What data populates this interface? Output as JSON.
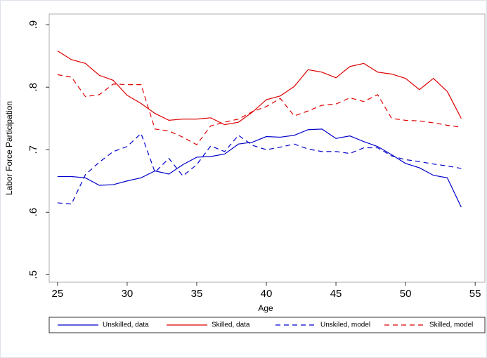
{
  "chart_data": {
    "type": "line",
    "x_label": "Age",
    "y_label": "Labor Force Participation",
    "x": [
      25,
      26,
      27,
      28,
      29,
      30,
      31,
      32,
      33,
      34,
      35,
      36,
      37,
      38,
      39,
      40,
      41,
      42,
      43,
      44,
      45,
      46,
      47,
      48,
      49,
      50,
      51,
      52,
      53,
      54
    ],
    "series": [
      {
        "name": "Unskilled, data",
        "color": "#0000cc",
        "style": "solid",
        "values": [
          0.657,
          0.657,
          0.655,
          0.643,
          0.644,
          0.65,
          0.655,
          0.666,
          0.661,
          0.676,
          0.688,
          0.689,
          0.693,
          0.709,
          0.712,
          0.721,
          0.72,
          0.723,
          0.732,
          0.733,
          0.718,
          0.722,
          0.713,
          0.705,
          0.692,
          0.678,
          0.671,
          0.659,
          0.655,
          0.608
        ]
      },
      {
        "name": "Skilled, data",
        "color": "#dd0000",
        "style": "solid",
        "values": [
          0.858,
          0.844,
          0.838,
          0.819,
          0.811,
          0.787,
          0.774,
          0.758,
          0.747,
          0.749,
          0.749,
          0.751,
          0.74,
          0.744,
          0.76,
          0.78,
          0.786,
          0.801,
          0.828,
          0.824,
          0.815,
          0.833,
          0.838,
          0.824,
          0.821,
          0.814,
          0.796,
          0.814,
          0.793,
          0.75
        ]
      },
      {
        "name": "Unskiled, model",
        "color": "#0000cc",
        "style": "dashed",
        "values": [
          0.615,
          0.613,
          0.66,
          0.68,
          0.697,
          0.705,
          0.726,
          0.664,
          0.686,
          0.658,
          0.676,
          0.706,
          0.697,
          0.723,
          0.707,
          0.7,
          0.704,
          0.709,
          0.701,
          0.697,
          0.697,
          0.694,
          0.703,
          0.703,
          0.69,
          0.684,
          0.681,
          0.677,
          0.674,
          0.67
        ]
      },
      {
        "name": "Skilled, model",
        "color": "#dd0000",
        "style": "dashed",
        "values": [
          0.82,
          0.816,
          0.785,
          0.788,
          0.805,
          0.804,
          0.804,
          0.733,
          0.73,
          0.72,
          0.708,
          0.738,
          0.744,
          0.749,
          0.761,
          0.769,
          0.782,
          0.754,
          0.762,
          0.771,
          0.773,
          0.783,
          0.777,
          0.788,
          0.75,
          0.747,
          0.746,
          0.743,
          0.739,
          0.736
        ]
      }
    ],
    "xlim": [
      24.4,
      55.7
    ],
    "xticks": [
      25,
      30,
      35,
      40,
      45,
      50,
      55
    ],
    "ylim": [
      0.488,
      0.917
    ],
    "yticks": [
      {
        "value": 0.5,
        "label": ".5"
      },
      {
        "value": 0.6,
        "label": ".6"
      },
      {
        "value": 0.7,
        "label": ".7"
      },
      {
        "value": 0.8,
        "label": ".8"
      },
      {
        "value": 0.9,
        "label": ".9"
      }
    ],
    "legend": "bottom"
  }
}
